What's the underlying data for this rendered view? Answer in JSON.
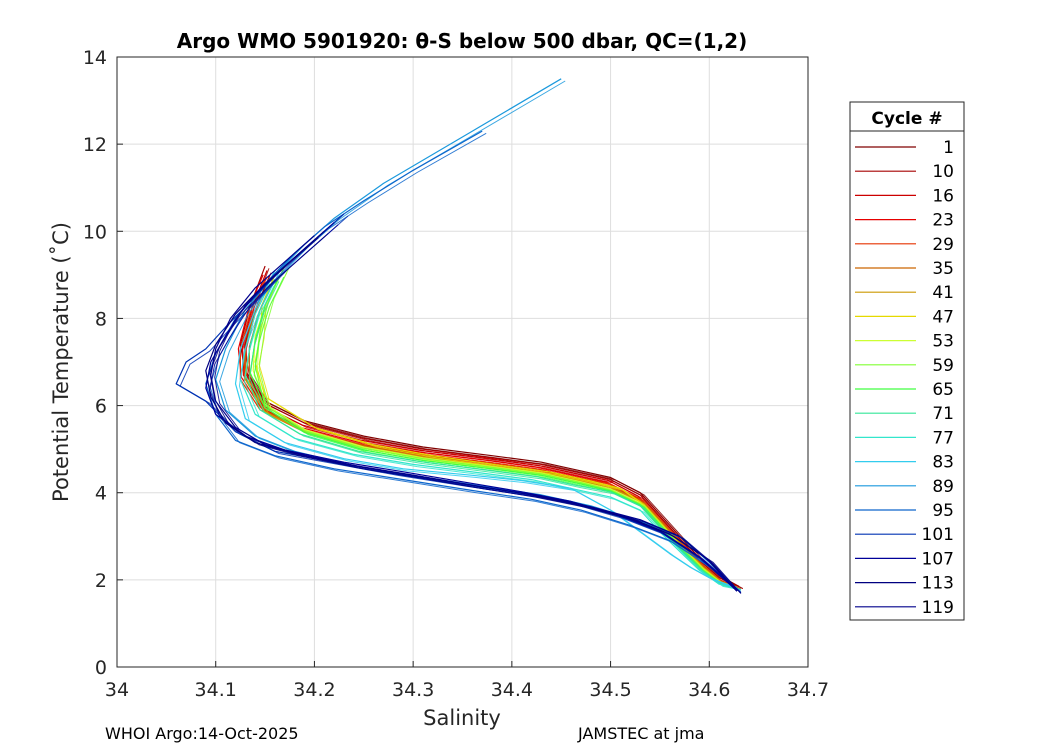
{
  "chart_data": {
    "type": "line",
    "title": "Argo WMO 5901920: θ-S below 500 dbar,  QC=(1,2)",
    "xlabel": "Salinity",
    "ylabel": "Potential Temperature (˚C)",
    "xlim": [
      34,
      34.7
    ],
    "ylim": [
      0,
      14
    ],
    "xticks": [
      "34",
      "34.1",
      "34.2",
      "34.3",
      "34.4",
      "34.5",
      "34.6",
      "34.7"
    ],
    "yticks": [
      "0",
      "2",
      "4",
      "6",
      "8",
      "10",
      "12",
      "14"
    ],
    "grid": true,
    "legend_title": "Cycle #",
    "legend_position": "outside-right",
    "legend": [
      {
        "name": "1",
        "color": "#800000"
      },
      {
        "name": "10",
        "color": "#a60000"
      },
      {
        "name": "16",
        "color": "#cc0000"
      },
      {
        "name": "23",
        "color": "#e60000"
      },
      {
        "name": "29",
        "color": "#e63300"
      },
      {
        "name": "35",
        "color": "#cc6600"
      },
      {
        "name": "41",
        "color": "#cc9900"
      },
      {
        "name": "47",
        "color": "#e6d900"
      },
      {
        "name": "53",
        "color": "#ccff33"
      },
      {
        "name": "59",
        "color": "#80ff33"
      },
      {
        "name": "65",
        "color": "#40ff40"
      },
      {
        "name": "71",
        "color": "#33e699"
      },
      {
        "name": "77",
        "color": "#33e6cc"
      },
      {
        "name": "83",
        "color": "#33ccee"
      },
      {
        "name": "89",
        "color": "#1a99dd"
      },
      {
        "name": "95",
        "color": "#0d66cc"
      },
      {
        "name": "101",
        "color": "#0033b3"
      },
      {
        "name": "107",
        "color": "#000099"
      },
      {
        "name": "113",
        "color": "#000080"
      },
      {
        "name": "119",
        "color": "#00008c"
      }
    ],
    "series": [
      {
        "name": "1",
        "color": "#800000",
        "x": [
          34.155,
          34.14,
          34.13,
          34.13,
          34.15,
          34.19,
          34.25,
          34.31,
          34.38,
          34.43,
          34.47,
          34.5,
          34.53,
          34.55,
          34.57,
          34.59,
          34.61,
          34.63
        ],
        "y": [
          9.0,
          8.2,
          7.4,
          6.8,
          6.1,
          5.65,
          5.3,
          5.05,
          4.85,
          4.7,
          4.5,
          4.35,
          4.0,
          3.5,
          3.0,
          2.5,
          2.1,
          1.85
        ]
      },
      {
        "name": "10",
        "color": "#a60000",
        "x": [
          34.15,
          34.135,
          34.125,
          34.13,
          34.15,
          34.19,
          34.25,
          34.31,
          34.38,
          34.43,
          34.47,
          34.5,
          34.53,
          34.55,
          34.57,
          34.59,
          34.61,
          34.63
        ],
        "y": [
          9.2,
          8.3,
          7.4,
          6.75,
          6.05,
          5.6,
          5.25,
          5.0,
          4.8,
          4.65,
          4.45,
          4.3,
          3.95,
          3.45,
          2.95,
          2.45,
          2.05,
          1.85
        ]
      },
      {
        "name": "16",
        "color": "#cc0000",
        "x": [
          34.152,
          34.137,
          34.127,
          34.128,
          34.148,
          34.188,
          34.248,
          34.308,
          34.378,
          34.428,
          34.468,
          34.498,
          34.528,
          34.548,
          34.568,
          34.588,
          34.608,
          34.628
        ],
        "y": [
          9.1,
          8.25,
          7.35,
          6.7,
          6.0,
          5.55,
          5.2,
          4.97,
          4.78,
          4.62,
          4.42,
          4.28,
          3.92,
          3.42,
          2.92,
          2.42,
          2.02,
          1.84
        ]
      },
      {
        "name": "23",
        "color": "#e60000",
        "x": [
          34.148,
          34.133,
          34.123,
          34.126,
          34.146,
          34.186,
          34.246,
          34.306,
          34.376,
          34.426,
          34.466,
          34.496,
          34.526,
          34.546,
          34.566,
          34.586,
          34.606,
          34.628
        ],
        "y": [
          9.0,
          8.2,
          7.3,
          6.65,
          5.95,
          5.5,
          5.15,
          4.93,
          4.74,
          4.58,
          4.38,
          4.24,
          3.88,
          3.38,
          2.88,
          2.4,
          2.0,
          1.84
        ]
      },
      {
        "name": "29",
        "color": "#e63300",
        "x": [
          34.15,
          34.135,
          34.125,
          34.125,
          34.145,
          34.185,
          34.245,
          34.305,
          34.375,
          34.425,
          34.465,
          34.5,
          34.53,
          34.55,
          34.57,
          34.59,
          34.61,
          34.628
        ],
        "y": [
          8.9,
          8.15,
          7.3,
          6.6,
          5.9,
          5.45,
          5.12,
          4.9,
          4.7,
          4.55,
          4.35,
          4.2,
          3.86,
          3.36,
          2.86,
          2.38,
          2.0,
          1.84
        ]
      },
      {
        "name": "35",
        "color": "#cc6600",
        "x": [
          34.153,
          34.138,
          34.13,
          34.13,
          34.15,
          34.19,
          34.25,
          34.31,
          34.38,
          34.43,
          34.47,
          34.5,
          34.53,
          34.55,
          34.57,
          34.59,
          34.61,
          34.628
        ],
        "y": [
          8.8,
          8.1,
          7.3,
          6.6,
          5.88,
          5.43,
          5.08,
          4.86,
          4.66,
          4.5,
          4.3,
          4.15,
          3.82,
          3.33,
          2.83,
          2.36,
          1.98,
          1.83
        ]
      },
      {
        "name": "41",
        "color": "#cc9900",
        "x": [
          34.158,
          34.145,
          34.135,
          34.13,
          34.15,
          34.19,
          34.25,
          34.31,
          34.38,
          34.43,
          34.47,
          34.5,
          34.53,
          34.55,
          34.57,
          34.59,
          34.61,
          34.628
        ],
        "y": [
          8.9,
          8.2,
          7.4,
          6.6,
          5.85,
          5.4,
          5.05,
          4.82,
          4.62,
          4.47,
          4.27,
          4.12,
          3.8,
          3.3,
          2.8,
          2.34,
          1.97,
          1.83
        ]
      },
      {
        "name": "47",
        "color": "#e6d900",
        "x": [
          34.16,
          34.147,
          34.145,
          34.14,
          34.15,
          34.2,
          34.26,
          34.32,
          34.39,
          34.44,
          34.48,
          34.51,
          34.53,
          34.55,
          34.57,
          34.59,
          34.61,
          34.628
        ],
        "y": [
          9.0,
          8.3,
          7.6,
          7.0,
          6.2,
          5.5,
          5.1,
          4.85,
          4.62,
          4.47,
          4.27,
          4.1,
          3.78,
          3.28,
          2.78,
          2.32,
          1.96,
          1.83
        ]
      },
      {
        "name": "53",
        "color": "#ccff33",
        "x": [
          34.168,
          34.152,
          34.14,
          34.138,
          34.152,
          34.19,
          34.25,
          34.31,
          34.38,
          34.43,
          34.47,
          34.5,
          34.53,
          34.55,
          34.57,
          34.59,
          34.61,
          34.628
        ],
        "y": [
          9.1,
          8.4,
          7.6,
          6.8,
          6.0,
          5.45,
          5.05,
          4.8,
          4.6,
          4.45,
          4.25,
          4.08,
          3.76,
          3.26,
          2.76,
          2.3,
          1.95,
          1.83
        ]
      },
      {
        "name": "59",
        "color": "#80ff33",
        "x": [
          34.17,
          34.155,
          34.145,
          34.14,
          34.15,
          34.19,
          34.25,
          34.31,
          34.38,
          34.43,
          34.47,
          34.5,
          34.53,
          34.55,
          34.57,
          34.59,
          34.61,
          34.628
        ],
        "y": [
          9.2,
          8.5,
          7.7,
          6.9,
          6.0,
          5.42,
          5.02,
          4.78,
          4.58,
          4.43,
          4.23,
          4.06,
          3.74,
          3.24,
          2.74,
          2.28,
          1.94,
          1.83
        ]
      },
      {
        "name": "65",
        "color": "#40ff40",
        "x": [
          34.165,
          34.15,
          34.14,
          34.135,
          34.15,
          34.19,
          34.25,
          34.31,
          34.38,
          34.43,
          34.47,
          34.5,
          34.53,
          34.55,
          34.57,
          34.59,
          34.61,
          34.628
        ],
        "y": [
          9.0,
          8.3,
          7.5,
          6.75,
          5.95,
          5.38,
          4.98,
          4.74,
          4.55,
          4.4,
          4.2,
          4.04,
          3.72,
          3.22,
          2.72,
          2.26,
          1.93,
          1.83
        ]
      },
      {
        "name": "71",
        "color": "#33e699",
        "x": [
          34.16,
          34.145,
          34.135,
          34.13,
          34.145,
          34.185,
          34.245,
          34.305,
          34.375,
          34.425,
          34.465,
          34.5,
          34.53,
          34.55,
          34.57,
          34.59,
          34.61,
          34.628
        ],
        "y": [
          8.9,
          8.2,
          7.4,
          6.7,
          5.9,
          5.35,
          4.95,
          4.72,
          4.52,
          4.37,
          4.17,
          4.02,
          3.7,
          3.2,
          2.7,
          2.25,
          1.92,
          1.83
        ]
      },
      {
        "name": "77",
        "color": "#33e6cc",
        "x": [
          34.155,
          34.14,
          34.13,
          34.125,
          34.14,
          34.18,
          34.24,
          34.3,
          34.37,
          34.42,
          34.46,
          34.5,
          34.53,
          34.55,
          34.57,
          34.59,
          34.61,
          34.628
        ],
        "y": [
          8.8,
          8.1,
          7.3,
          6.6,
          5.8,
          5.25,
          4.88,
          4.65,
          4.45,
          4.3,
          4.1,
          3.9,
          3.6,
          3.1,
          2.65,
          2.22,
          1.9,
          1.82
        ]
      },
      {
        "name": "83",
        "color": "#33ccee",
        "x": [
          34.16,
          34.14,
          34.125,
          34.12,
          34.13,
          34.17,
          34.23,
          34.29,
          34.36,
          34.41,
          34.46,
          34.5,
          34.53,
          34.56,
          34.58,
          34.6,
          34.62,
          34.628
        ],
        "y": [
          9.1,
          8.2,
          7.3,
          6.5,
          5.7,
          5.15,
          4.78,
          4.55,
          4.4,
          4.28,
          4.1,
          3.6,
          3.1,
          2.6,
          2.3,
          2.05,
          1.88,
          1.82
        ]
      },
      {
        "name": "89",
        "color": "#1a99dd",
        "x": [
          34.45,
          34.36,
          34.27,
          34.22,
          34.19,
          34.16,
          34.13,
          34.11,
          34.1,
          34.11,
          34.14,
          34.18,
          34.24,
          34.3,
          34.37,
          34.43,
          34.48,
          34.53,
          34.57,
          34.6,
          34.625
        ],
        "y": [
          13.5,
          12.3,
          11.1,
          10.3,
          9.7,
          9.0,
          8.2,
          7.3,
          6.6,
          5.9,
          5.3,
          4.95,
          4.62,
          4.4,
          4.15,
          3.95,
          3.7,
          3.35,
          3.0,
          2.4,
          1.8
        ]
      },
      {
        "name": "95",
        "color": "#0d66cc",
        "x": [
          34.37,
          34.3,
          34.25,
          34.21,
          34.18,
          34.15,
          34.12,
          34.1,
          34.09,
          34.1,
          34.12,
          34.16,
          34.22,
          34.29,
          34.36,
          34.42,
          34.47,
          34.52,
          34.56,
          34.6,
          34.628
        ],
        "y": [
          12.3,
          11.4,
          10.7,
          10.1,
          9.5,
          8.8,
          8.0,
          7.2,
          6.5,
          5.8,
          5.2,
          4.85,
          4.55,
          4.3,
          4.05,
          3.85,
          3.6,
          3.25,
          2.9,
          2.3,
          1.78
        ]
      },
      {
        "name": "101",
        "color": "#0033b3",
        "x": [
          34.23,
          34.2,
          34.17,
          34.14,
          34.11,
          34.09,
          34.07,
          34.06,
          34.09,
          34.12,
          34.16,
          34.22,
          34.28,
          34.35,
          34.41,
          34.46,
          34.51,
          34.55,
          34.59,
          34.628
        ],
        "y": [
          10.4,
          9.8,
          9.2,
          8.5,
          7.8,
          7.3,
          7.0,
          6.5,
          6.1,
          5.4,
          4.95,
          4.7,
          4.45,
          4.2,
          4.0,
          3.78,
          3.45,
          3.1,
          2.5,
          1.76
        ]
      },
      {
        "name": "107",
        "color": "#000099",
        "x": [
          34.22,
          34.19,
          34.16,
          34.13,
          34.11,
          34.095,
          34.09,
          34.1,
          34.13,
          34.17,
          34.23,
          34.29,
          34.35,
          34.41,
          34.46,
          34.51,
          34.55,
          34.59,
          34.628
        ],
        "y": [
          10.2,
          9.6,
          9.0,
          8.3,
          7.6,
          7.0,
          6.4,
          5.8,
          5.3,
          4.98,
          4.7,
          4.48,
          4.25,
          4.02,
          3.8,
          3.48,
          3.12,
          2.52,
          1.75
        ]
      },
      {
        "name": "113",
        "color": "#000080",
        "x": [
          34.21,
          34.18,
          34.15,
          34.12,
          34.1,
          34.09,
          34.095,
          34.11,
          34.14,
          34.18,
          34.24,
          34.3,
          34.36,
          34.42,
          34.47,
          34.52,
          34.56,
          34.6,
          34.628
        ],
        "y": [
          10.0,
          9.4,
          8.8,
          8.1,
          7.4,
          6.8,
          6.2,
          5.6,
          5.15,
          4.9,
          4.62,
          4.4,
          4.17,
          3.95,
          3.72,
          3.42,
          3.05,
          2.45,
          1.74
        ]
      },
      {
        "name": "119",
        "color": "#00008c",
        "x": [
          34.2,
          34.17,
          34.14,
          34.115,
          34.1,
          34.095,
          34.1,
          34.12,
          34.15,
          34.19,
          34.25,
          34.31,
          34.37,
          34.43,
          34.48,
          34.53,
          34.57,
          34.6,
          34.628
        ],
        "y": [
          9.9,
          9.3,
          8.7,
          8.0,
          7.3,
          6.7,
          6.1,
          5.5,
          5.1,
          4.86,
          4.58,
          4.36,
          4.13,
          3.92,
          3.68,
          3.38,
          3.0,
          2.42,
          1.74
        ]
      }
    ]
  },
  "footer": {
    "left": "WHOI Argo:14-Oct-2025",
    "right": "JAMSTEC at jma"
  }
}
